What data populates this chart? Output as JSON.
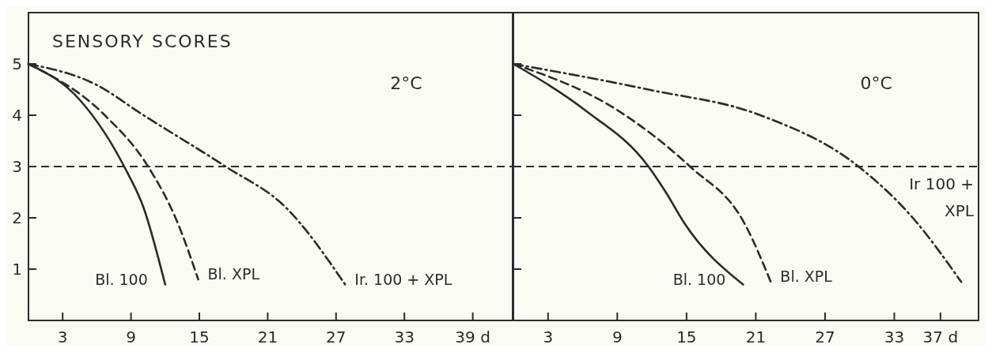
{
  "chart_data": [
    {
      "type": "line",
      "title": "SENSORY SCORES",
      "subtitle": "2°C",
      "xlim": [
        0,
        42.5
      ],
      "ylim": [
        0,
        6
      ],
      "xticks": [
        3,
        9,
        15,
        21,
        27,
        33,
        {
          "value": 39,
          "label": "39 d"
        }
      ],
      "yticks": [
        1,
        2,
        3,
        4,
        5
      ],
      "grid": false,
      "marker": "none",
      "ref_lines": [
        {
          "axis": "y",
          "value": 3,
          "line_style": "dashed"
        }
      ],
      "series": [
        {
          "name": "Bl. 100",
          "color": "#2b2b2b",
          "line_style": "solid",
          "x": [
            0,
            4.5,
            8.4,
            10.1,
            12
          ],
          "values": [
            5,
            4.3,
            3,
            2.2,
            0.7
          ]
        },
        {
          "name": "Bl. XPL",
          "color": "#2b2b2b",
          "line_style": "dashed",
          "x": [
            0,
            6.7,
            10.5,
            13.1,
            14.9
          ],
          "values": [
            5,
            4,
            3,
            1.9,
            0.8
          ]
        },
        {
          "name": "Ir. 100 + XPL",
          "color": "#2b2b2b",
          "line_style": "dashdot",
          "x": [
            0,
            5.9,
            10.1,
            17.3,
            22.6,
            27.8
          ],
          "values": [
            5,
            4.6,
            4,
            3,
            2.2,
            0.7
          ]
        }
      ]
    },
    {
      "type": "line",
      "subtitle": "0°C",
      "xlim": [
        0,
        40.3
      ],
      "ylim": [
        0,
        6
      ],
      "tick_labels": "x",
      "xticks": [
        3,
        9,
        15,
        21,
        27,
        33,
        {
          "value": 37,
          "label": "37 d"
        }
      ],
      "yticks": [
        1,
        2,
        3,
        4,
        5
      ],
      "grid": false,
      "marker": "none",
      "ref_lines": [
        {
          "axis": "y",
          "value": 3,
          "line_style": "dashed"
        }
      ],
      "series": [
        {
          "name": "Bl. 100",
          "color": "#2b2b2b",
          "line_style": "solid",
          "x": [
            0,
            6.2,
            11.7,
            13.2,
            14.8,
            19.9
          ],
          "values": [
            5,
            4.1,
            3,
            2.5,
            1.9,
            0.7
          ]
        },
        {
          "name": "Bl. XPL",
          "color": "#2b2b2b",
          "line_style": "dashed",
          "x": [
            0,
            9,
            15.3,
            20,
            22.3
          ],
          "values": [
            5,
            4.1,
            3,
            1.9,
            0.75
          ]
        },
        {
          "name": "Ir 100 + XPL",
          "color": "#2b2b2b",
          "line_style": "dashdot",
          "x": [
            0,
            11.7,
            21.4,
            29.9,
            34.6,
            38.8
          ],
          "values": [
            5,
            4.5,
            4,
            3,
            2,
            0.75
          ]
        }
      ]
    }
  ]
}
